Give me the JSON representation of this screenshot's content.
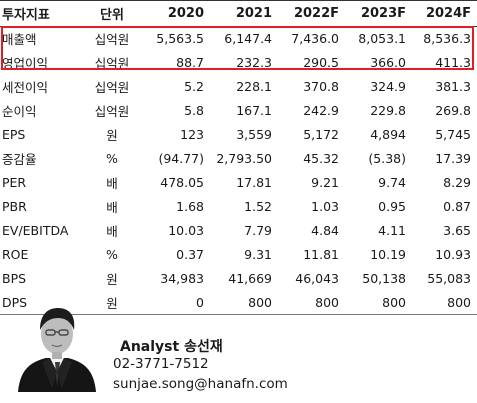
{
  "table": {
    "headers": [
      "투자지표",
      "단위",
      "2020",
      "2021",
      "2022F",
      "2023F",
      "2024F"
    ],
    "rows": [
      {
        "label": "매출액",
        "unit": "십억원",
        "values": [
          "5,563.5",
          "6,147.4",
          "7,436.0",
          "8,053.1",
          "8,536.3"
        ],
        "highlighted": true
      },
      {
        "label": "영업이익",
        "unit": "십억원",
        "values": [
          "88.7",
          "232.3",
          "290.5",
          "366.0",
          "411.3"
        ],
        "highlighted": true
      },
      {
        "label": "세전이익",
        "unit": "십억원",
        "values": [
          "5.2",
          "228.1",
          "370.8",
          "324.9",
          "381.3"
        ]
      },
      {
        "label": "순이익",
        "unit": "십억원",
        "values": [
          "5.8",
          "167.1",
          "242.9",
          "229.8",
          "269.8"
        ]
      },
      {
        "label": "EPS",
        "unit": "원",
        "values": [
          "123",
          "3,559",
          "5,172",
          "4,894",
          "5,745"
        ]
      },
      {
        "label": "증감율",
        "unit": "%",
        "values": [
          "(94.77)",
          "2,793.50",
          "45.32",
          "(5.38)",
          "17.39"
        ]
      },
      {
        "label": "PER",
        "unit": "배",
        "values": [
          "478.05",
          "17.81",
          "9.21",
          "9.74",
          "8.29"
        ]
      },
      {
        "label": "PBR",
        "unit": "배",
        "values": [
          "1.68",
          "1.52",
          "1.03",
          "0.95",
          "0.87"
        ]
      },
      {
        "label": "EV/EBITDA",
        "unit": "배",
        "values": [
          "10.03",
          "7.79",
          "4.84",
          "4.11",
          "3.65"
        ]
      },
      {
        "label": "ROE",
        "unit": "%",
        "values": [
          "0.37",
          "9.31",
          "11.81",
          "10.19",
          "10.93"
        ]
      },
      {
        "label": "BPS",
        "unit": "원",
        "values": [
          "34,983",
          "41,669",
          "46,043",
          "50,138",
          "55,083"
        ]
      },
      {
        "label": "DPS",
        "unit": "원",
        "values": [
          "0",
          "800",
          "800",
          "800",
          "800"
        ]
      }
    ]
  },
  "analyst": {
    "name": "Analyst 송선재",
    "phone": "02-3771-7512",
    "email": "sunjae.song@hanafn.com"
  },
  "colors": {
    "highlight_border": "#e01e26"
  }
}
